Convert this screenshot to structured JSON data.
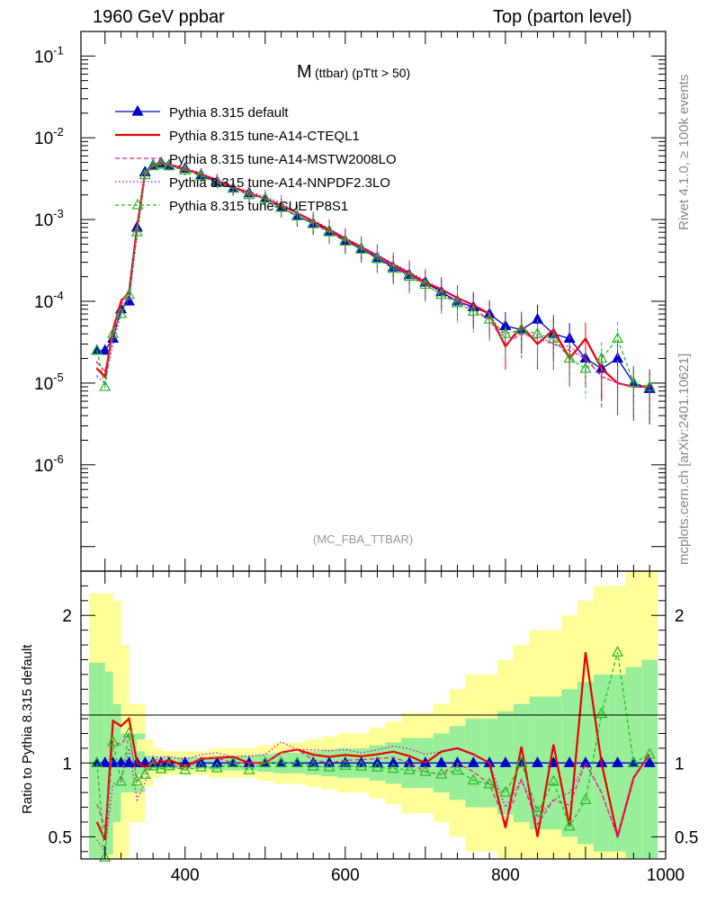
{
  "header": {
    "left": "1960 GeV ppbar",
    "right": "Top (parton level)"
  },
  "side": {
    "rivet": "Rivet 4.1.0, ≥ 100k events",
    "mcplots": "mcplots.cern.ch [arXiv:2401.10621]"
  },
  "chart_data": {
    "type": "line",
    "title_main": "M",
    "title_sub": "(ttbar) (pTtt > 50)",
    "watermark": "(MC_FBA_TTBAR)",
    "xlim": [
      270,
      1000
    ],
    "x_ticks": [
      "400",
      "600",
      "800",
      "1000"
    ],
    "main": {
      "ylog": true,
      "ylim_exponent": [
        -7.3,
        -0.7
      ],
      "y_ticks": [
        {
          "base": "10",
          "exp": "-1"
        },
        {
          "base": "10",
          "exp": "-2"
        },
        {
          "base": "10",
          "exp": "-3"
        },
        {
          "base": "10",
          "exp": "-4"
        },
        {
          "base": "10",
          "exp": "-5"
        },
        {
          "base": "10",
          "exp": "-6"
        }
      ],
      "y_tick_values": [
        0.1,
        0.01,
        0.001,
        0.0001,
        1e-05,
        1e-06
      ]
    },
    "ratio": {
      "ylabel": "Ratio to Pythia 8.315 default",
      "ylim": [
        0.35,
        2.3
      ],
      "y_ticks": [
        "0.5",
        "1",
        "2"
      ],
      "y_tick_values": [
        0.5,
        1,
        2
      ],
      "band_green_halfwidth": [
        0.68,
        0.62,
        0.4,
        0.2,
        0.08,
        0.05,
        0.04,
        0.04,
        0.04,
        0.05,
        0.05,
        0.06,
        0.07,
        0.08,
        0.09,
        0.1,
        0.12,
        0.14,
        0.17,
        0.2,
        0.25,
        0.3,
        0.35,
        0.4,
        0.45,
        0.5,
        0.55,
        0.6,
        0.65,
        0.7
      ],
      "band_yellow_halfwidth": [
        1.15,
        1.1,
        0.8,
        0.4,
        0.16,
        0.1,
        0.08,
        0.08,
        0.08,
        0.1,
        0.1,
        0.12,
        0.14,
        0.16,
        0.18,
        0.2,
        0.24,
        0.28,
        0.34,
        0.4,
        0.5,
        0.6,
        0.7,
        0.8,
        0.9,
        1.0,
        1.1,
        1.2,
        1.3,
        1.4
      ]
    },
    "series": [
      {
        "name": "Pythia 8.315 default",
        "color": "#0000cc",
        "dash": "",
        "marker": "triangle-filled",
        "x": [
          290,
          300,
          310,
          320,
          330,
          340,
          350,
          360,
          370,
          380,
          400,
          420,
          440,
          460,
          480,
          500,
          520,
          540,
          560,
          580,
          600,
          620,
          640,
          660,
          680,
          700,
          720,
          740,
          760,
          780,
          800,
          820,
          840,
          860,
          880,
          900,
          920,
          940,
          960,
          980
        ],
        "y": [
          2.5e-05,
          2.5e-05,
          3.5e-05,
          8e-05,
          0.0001,
          0.0008,
          0.0038,
          0.0046,
          0.0049,
          0.0046,
          0.0042,
          0.0035,
          0.0029,
          0.0024,
          0.0021,
          0.0018,
          0.0014,
          0.0011,
          0.0009,
          0.00072,
          0.00055,
          0.00044,
          0.00034,
          0.00026,
          0.00021,
          0.00017,
          0.00013,
          0.0001,
          8.5e-05,
          7e-05,
          5e-05,
          4.5e-05,
          6e-05,
          4e-05,
          3.5e-05,
          2e-05,
          1.5e-05,
          2e-05,
          1e-05,
          8.5e-06
        ]
      },
      {
        "name": "Pythia 8.315 tune-A14-CTEQL1",
        "color": "#ee0000",
        "dash": "",
        "marker": "none",
        "x": [
          290,
          300,
          310,
          320,
          330,
          340,
          350,
          360,
          370,
          380,
          400,
          420,
          440,
          460,
          480,
          500,
          520,
          540,
          560,
          580,
          600,
          620,
          640,
          660,
          680,
          700,
          720,
          740,
          760,
          780,
          800,
          820,
          840,
          860,
          880,
          900,
          920,
          940,
          960,
          980
        ],
        "y": [
          1.5e-05,
          1.2e-05,
          4.5e-05,
          0.0001,
          0.00013,
          0.0008,
          0.0037,
          0.0046,
          0.0049,
          0.0047,
          0.0041,
          0.0036,
          0.003,
          0.0025,
          0.0021,
          0.0018,
          0.0015,
          0.0012,
          0.00095,
          0.00075,
          0.00058,
          0.00046,
          0.00036,
          0.00028,
          0.00022,
          0.00017,
          0.00014,
          0.00011,
          9e-05,
          7e-05,
          2.8e-05,
          5e-05,
          3e-05,
          4.5e-05,
          2e-05,
          3.5e-05,
          1.5e-05,
          1e-05,
          9e-06,
          9e-06
        ]
      },
      {
        "name": "Pythia 8.315 tune-A14-MSTW2008LO",
        "color": "#ee2288",
        "dash": "5,3",
        "marker": "none",
        "x": [
          290,
          300,
          310,
          320,
          330,
          340,
          350,
          360,
          370,
          380,
          400,
          420,
          440,
          460,
          480,
          500,
          520,
          540,
          560,
          580,
          600,
          620,
          640,
          660,
          680,
          700,
          720,
          740,
          760,
          780,
          800,
          820,
          840,
          860,
          880,
          900,
          920,
          940,
          960,
          980
        ],
        "y": [
          1.8e-05,
          1.4e-05,
          4e-05,
          9e-05,
          0.00012,
          0.0007,
          0.0036,
          0.0047,
          0.005,
          0.0046,
          0.004,
          0.0036,
          0.003,
          0.0024,
          0.0021,
          0.0018,
          0.0015,
          0.0012,
          0.00092,
          0.00072,
          0.00056,
          0.00045,
          0.00035,
          0.00027,
          0.00021,
          0.00016,
          0.00012,
          0.0001,
          8e-05,
          6e-05,
          3e-05,
          4e-05,
          3.5e-05,
          3e-05,
          2.5e-05,
          2e-05,
          1.2e-05,
          1e-05,
          9e-06,
          9e-06
        ]
      },
      {
        "name": "Pythia 8.315 tune-A14-NNPDF2.3LO",
        "color": "#cc00cc",
        "dash": "1.5,2.5",
        "marker": "none",
        "x": [
          290,
          300,
          310,
          320,
          330,
          340,
          350,
          360,
          370,
          380,
          400,
          420,
          440,
          460,
          480,
          500,
          520,
          540,
          560,
          580,
          600,
          620,
          640,
          660,
          680,
          700,
          720,
          740,
          760,
          780,
          800,
          820,
          840,
          860,
          880,
          900,
          920,
          940,
          960,
          980
        ],
        "y": [
          1.2e-05,
          1e-05,
          3e-05,
          7e-05,
          0.00011,
          0.0006,
          0.0033,
          0.0048,
          0.0051,
          0.0048,
          0.0043,
          0.0037,
          0.0031,
          0.0025,
          0.0022,
          0.0019,
          0.0016,
          0.0012,
          0.00098,
          0.00078,
          0.0006,
          0.00047,
          0.00037,
          0.00029,
          0.00023,
          0.00018,
          0.00014,
          0.00011,
          9e-05,
          7e-05,
          3.5e-05,
          4e-05,
          3.8e-05,
          3e-05,
          2.8e-05,
          2e-05,
          1.2e-05,
          1e-05,
          9e-06,
          9e-06
        ]
      },
      {
        "name": "Pythia 8.315 tune-CUETP8S1",
        "color": "#22bb22",
        "dash": "4,3",
        "marker": "triangle-open",
        "x": [
          290,
          300,
          310,
          320,
          330,
          340,
          350,
          360,
          370,
          380,
          400,
          420,
          440,
          460,
          480,
          500,
          520,
          540,
          560,
          580,
          600,
          620,
          640,
          660,
          680,
          700,
          720,
          740,
          760,
          780,
          800,
          820,
          840,
          860,
          880,
          900,
          920,
          940,
          960,
          980
        ],
        "y": [
          2.5e-05,
          9e-06,
          4e-05,
          7e-05,
          0.00012,
          0.0007,
          0.0035,
          0.0045,
          0.0047,
          0.0045,
          0.004,
          0.0034,
          0.0028,
          0.0024,
          0.002,
          0.0018,
          0.0014,
          0.0011,
          0.00088,
          0.0007,
          0.00054,
          0.00043,
          0.00033,
          0.00025,
          0.0002,
          0.00016,
          0.00012,
          9.5e-05,
          7.5e-05,
          6e-05,
          4e-05,
          4.5e-05,
          4e-05,
          3.5e-05,
          2e-05,
          1.5e-05,
          2e-05,
          3.5e-05,
          1e-05,
          9e-06
        ]
      }
    ]
  }
}
